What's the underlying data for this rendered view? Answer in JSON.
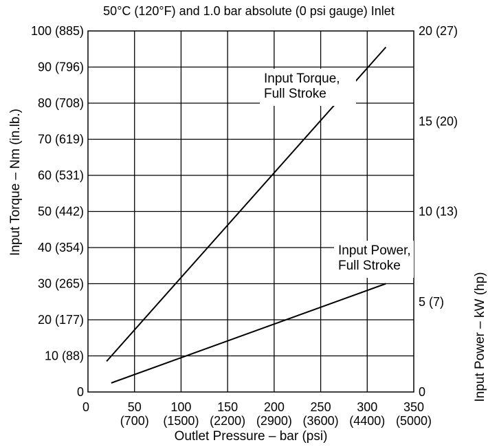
{
  "chart_data": {
    "type": "line",
    "subtitle": "50°C (120°F) and 1.0 bar absolute (0 psi gauge) Inlet",
    "xlabel": "Outlet Pressure – bar (psi)",
    "ylabel": "Input Torque – Nm (in.lb.)",
    "y2label": "Input Power – kW (hp)",
    "xlim": [
      0,
      350
    ],
    "ylim": [
      0,
      100
    ],
    "y2lim": [
      0,
      20
    ],
    "grid": true,
    "x_ticks": [
      {
        "value": 0,
        "label": "0",
        "sub": ""
      },
      {
        "value": 50,
        "label": "50",
        "sub": "(700)"
      },
      {
        "value": 100,
        "label": "100",
        "sub": "(1500)"
      },
      {
        "value": 150,
        "label": "150",
        "sub": "(2200)"
      },
      {
        "value": 200,
        "label": "200",
        "sub": "(2900)"
      },
      {
        "value": 250,
        "label": "250",
        "sub": "(3600)"
      },
      {
        "value": 300,
        "label": "300",
        "sub": "(4400)"
      },
      {
        "value": 350,
        "label": "350",
        "sub": "(5000)"
      }
    ],
    "y_ticks": [
      {
        "value": 0,
        "label": "0"
      },
      {
        "value": 10,
        "label": "10 (88)"
      },
      {
        "value": 20,
        "label": "20 (177)"
      },
      {
        "value": 30,
        "label": "30 (265)"
      },
      {
        "value": 40,
        "label": "40 (354)"
      },
      {
        "value": 50,
        "label": "50 (442)"
      },
      {
        "value": 60,
        "label": "60 (531)"
      },
      {
        "value": 70,
        "label": "70 (619)"
      },
      {
        "value": 80,
        "label": "80 (708)"
      },
      {
        "value": 90,
        "label": "90 (796)"
      },
      {
        "value": 100,
        "label": "100 (885)"
      }
    ],
    "y2_ticks": [
      {
        "value": 0,
        "label": "0"
      },
      {
        "value": 5,
        "label": "5 (7)"
      },
      {
        "value": 10,
        "label": "10 (13)"
      },
      {
        "value": 15,
        "label": "15 (20)"
      },
      {
        "value": 20,
        "label": "20 (27)"
      }
    ],
    "series": [
      {
        "name": "Input Torque, Full Stroke",
        "axis": "left",
        "x": [
          20,
          320
        ],
        "y": [
          8.5,
          95.5
        ],
        "label_lines": [
          "Input Torque,",
          "Full Stroke"
        ]
      },
      {
        "name": "Input Power, Full Stroke",
        "axis": "right",
        "x": [
          25,
          320
        ],
        "y": [
          0.5,
          6.0
        ],
        "label_lines": [
          "Input Power,",
          "Full Stroke"
        ]
      }
    ]
  }
}
